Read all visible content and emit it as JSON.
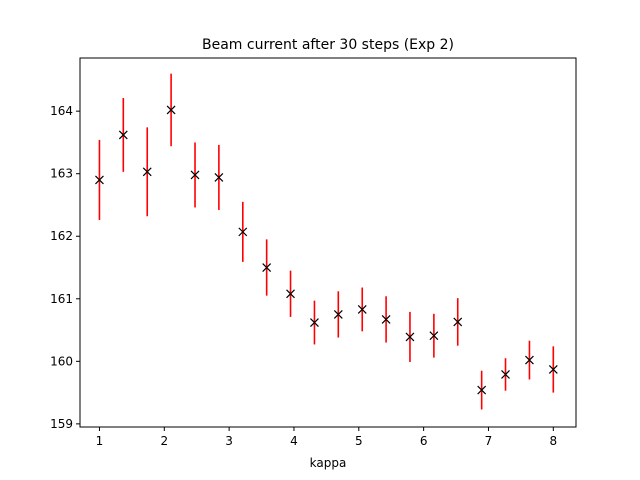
{
  "chart_data": {
    "type": "scatter",
    "title": "Beam current after 30 steps (Exp 2)",
    "xlabel": "kappa",
    "ylabel": "",
    "xlim": [
      0.7,
      8.35
    ],
    "ylim": [
      158.95,
      164.85
    ],
    "xticks": [
      1,
      2,
      3,
      4,
      5,
      6,
      7,
      8
    ],
    "yticks": [
      159,
      160,
      161,
      162,
      163,
      164
    ],
    "grid": false,
    "legend": "none",
    "marker": "x",
    "marker_color": "#000000",
    "errorbar_color": "#ff0000",
    "points": [
      {
        "x": 1.0,
        "y": 162.9,
        "err": 0.64
      },
      {
        "x": 1.368,
        "y": 163.62,
        "err": 0.59
      },
      {
        "x": 1.737,
        "y": 163.03,
        "err": 0.71
      },
      {
        "x": 2.105,
        "y": 164.02,
        "err": 0.58
      },
      {
        "x": 2.474,
        "y": 162.98,
        "err": 0.52
      },
      {
        "x": 2.842,
        "y": 162.94,
        "err": 0.52
      },
      {
        "x": 3.211,
        "y": 162.07,
        "err": 0.48
      },
      {
        "x": 3.579,
        "y": 161.5,
        "err": 0.45
      },
      {
        "x": 3.947,
        "y": 161.08,
        "err": 0.37
      },
      {
        "x": 4.316,
        "y": 160.62,
        "err": 0.35
      },
      {
        "x": 4.684,
        "y": 160.75,
        "err": 0.37
      },
      {
        "x": 5.053,
        "y": 160.83,
        "err": 0.35
      },
      {
        "x": 5.421,
        "y": 160.67,
        "err": 0.37
      },
      {
        "x": 5.789,
        "y": 160.39,
        "err": 0.4
      },
      {
        "x": 6.158,
        "y": 160.41,
        "err": 0.35
      },
      {
        "x": 6.526,
        "y": 160.63,
        "err": 0.38
      },
      {
        "x": 6.895,
        "y": 159.54,
        "err": 0.31
      },
      {
        "x": 7.263,
        "y": 159.79,
        "err": 0.26
      },
      {
        "x": 7.632,
        "y": 160.02,
        "err": 0.31
      },
      {
        "x": 8.0,
        "y": 159.87,
        "err": 0.37
      }
    ]
  }
}
